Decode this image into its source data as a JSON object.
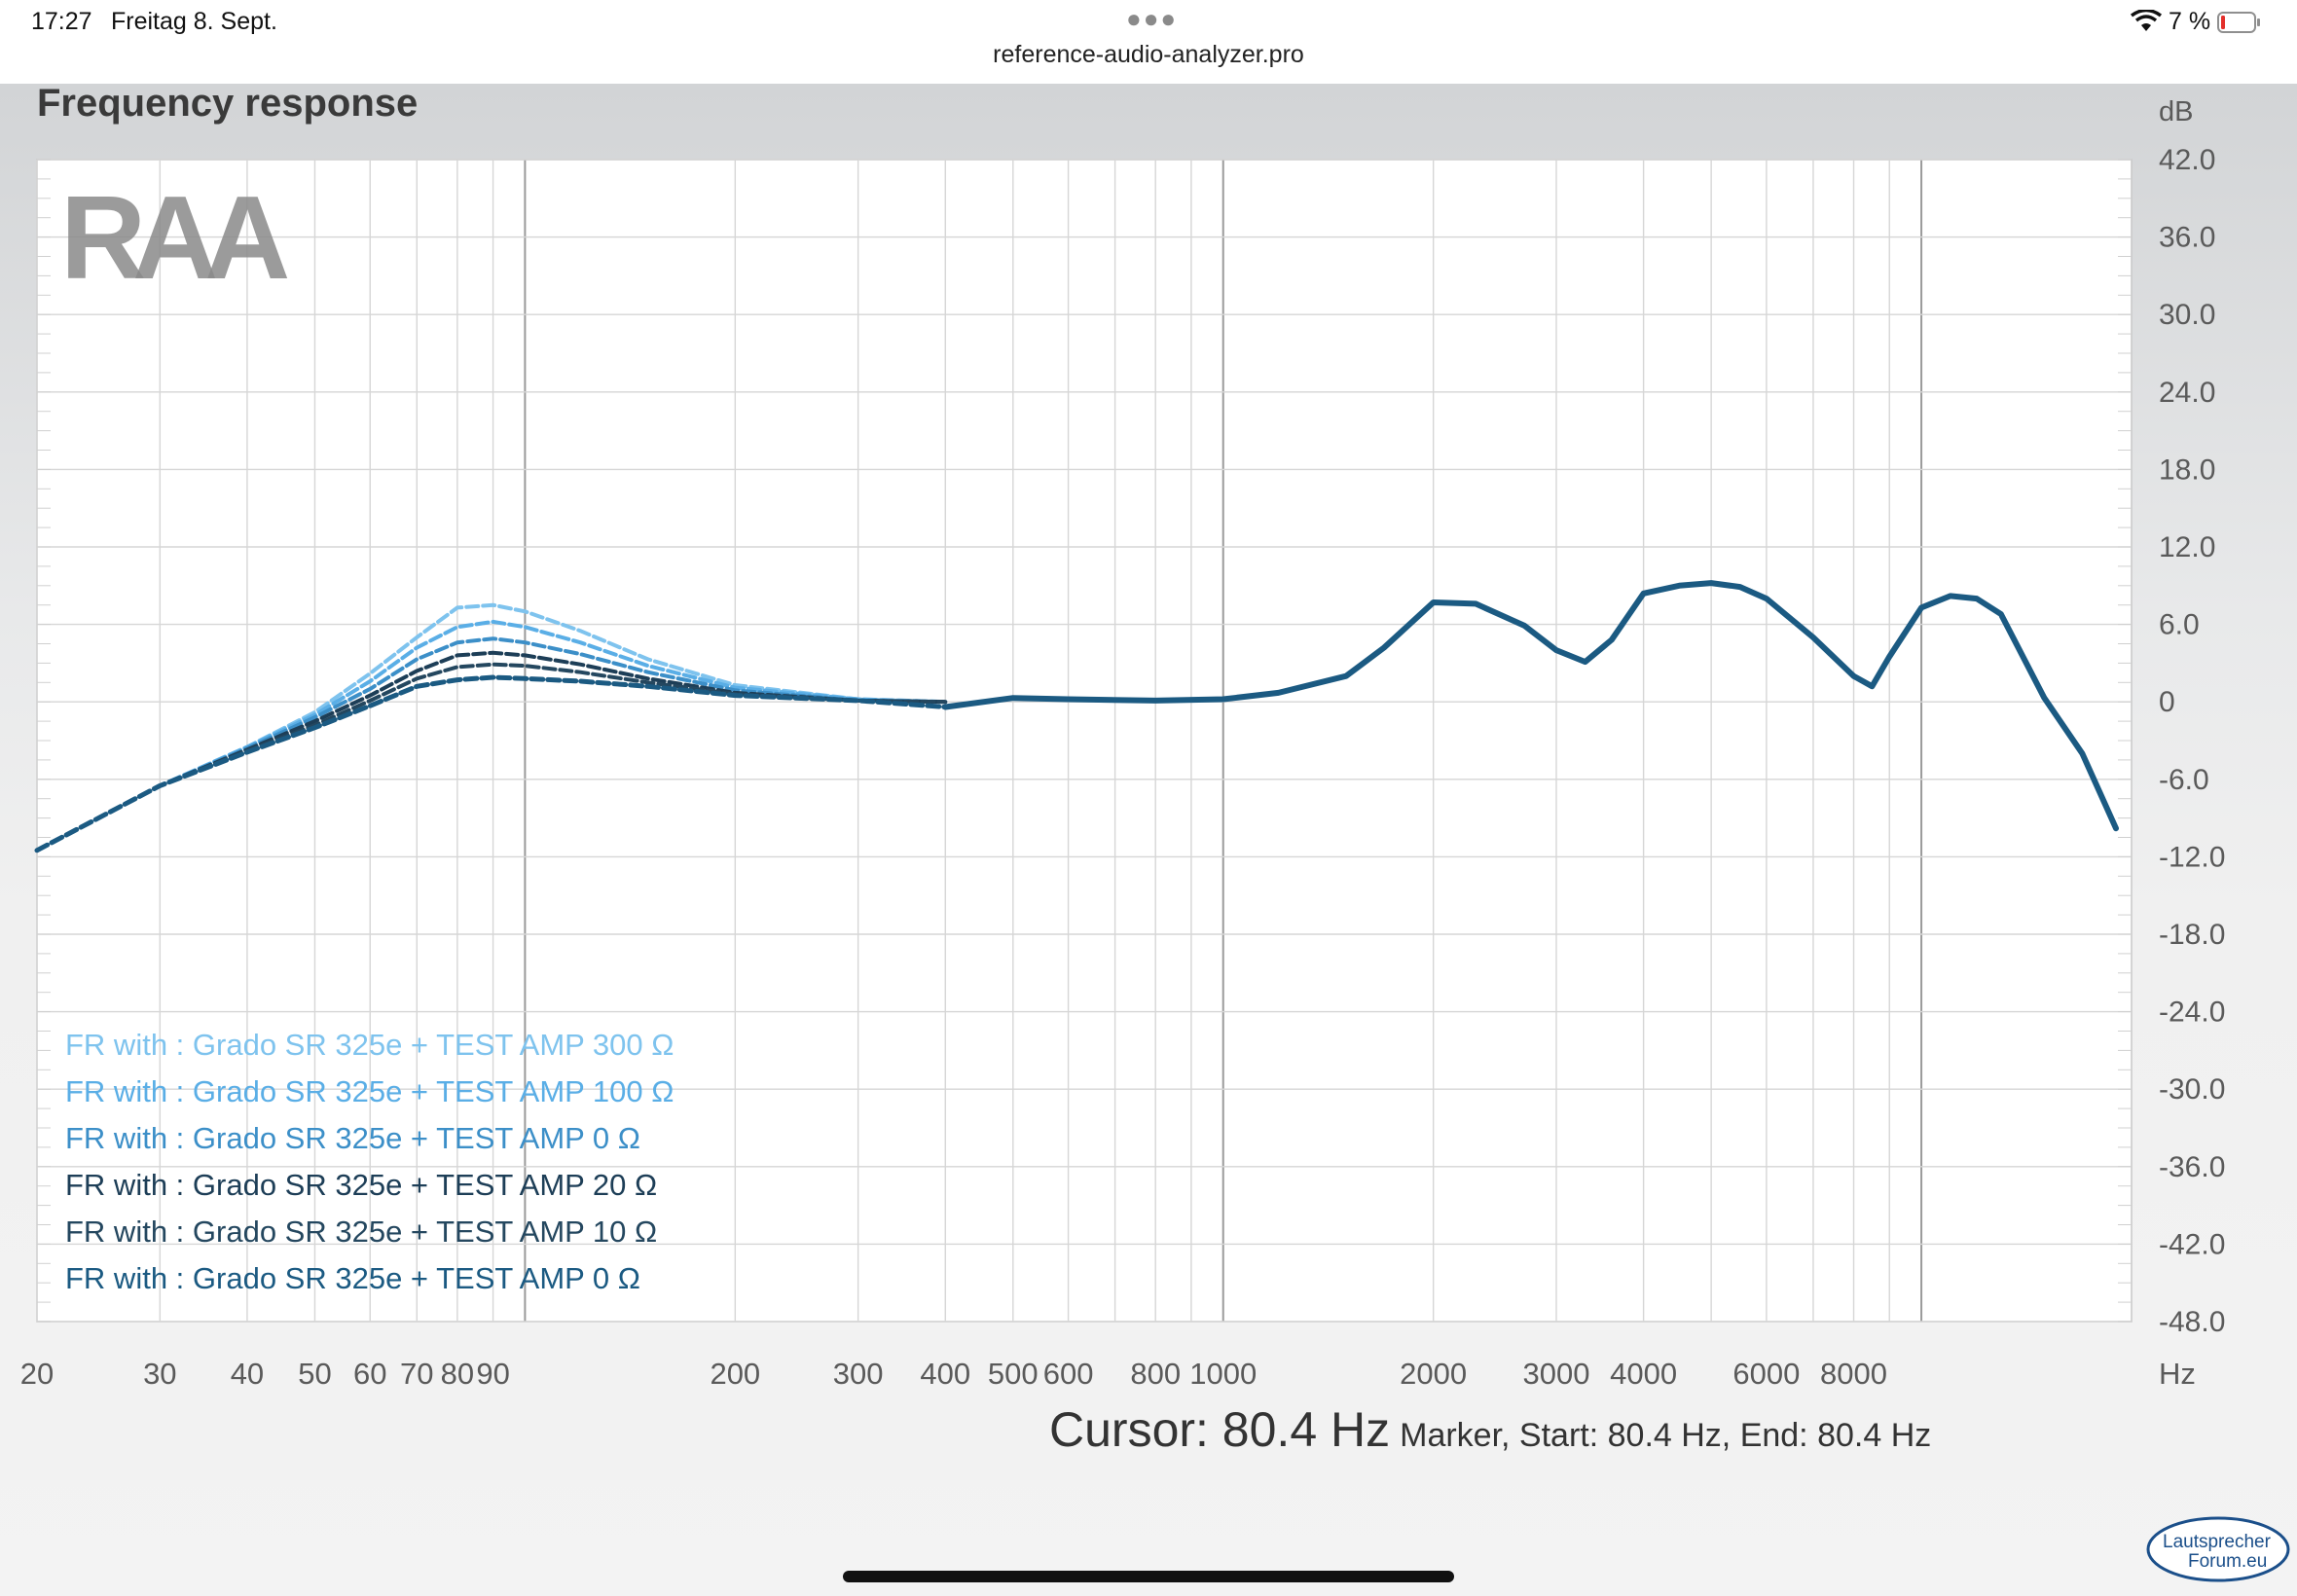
{
  "status_bar": {
    "time": "17:27",
    "date": "Freitag 8. Sept.",
    "url": "reference-audio-analyzer.pro",
    "battery": "7 %",
    "icons": [
      "more-dots-icon",
      "wifi-icon",
      "battery-low-icon"
    ]
  },
  "chart_title": "Frequency response",
  "cursor": {
    "main": "Cursor: 80.4 Hz",
    "marker": "Marker, Start: 80.4 Hz, End: 80.4 Hz"
  },
  "logos": {
    "ram": "RAA",
    "forum_line1": "Lautsprecher",
    "forum_line2": "Forum.eu"
  },
  "chart_data": {
    "type": "line",
    "title": "Frequency response",
    "xlabel": "Hz",
    "ylabel": "dB",
    "xscale": "log",
    "xlim": [
      20,
      20000
    ],
    "ylim": [
      -48,
      42
    ],
    "grid": true,
    "legend_position": "bottom-left",
    "x_ticks": [
      {
        "v": 20,
        "label": "20"
      },
      {
        "v": 30,
        "label": "30"
      },
      {
        "v": 40,
        "label": "40"
      },
      {
        "v": 50,
        "label": "50"
      },
      {
        "v": 60,
        "label": "60"
      },
      {
        "v": 70,
        "label": "70"
      },
      {
        "v": 80,
        "label": "80"
      },
      {
        "v": 90,
        "label": "90"
      },
      {
        "v": 200,
        "label": "200"
      },
      {
        "v": 300,
        "label": "300"
      },
      {
        "v": 400,
        "label": "400"
      },
      {
        "v": 500,
        "label": "500"
      },
      {
        "v": 600,
        "label": "600"
      },
      {
        "v": 800,
        "label": "800"
      },
      {
        "v": 1000,
        "label": "1000"
      },
      {
        "v": 2000,
        "label": "2000"
      },
      {
        "v": 3000,
        "label": "3000"
      },
      {
        "v": 4000,
        "label": "4000"
      },
      {
        "v": 6000,
        "label": "6000"
      },
      {
        "v": 8000,
        "label": "8000"
      }
    ],
    "y_ticks": [
      {
        "v": 42,
        "label": "42.0"
      },
      {
        "v": 36,
        "label": "36.0"
      },
      {
        "v": 30,
        "label": "30.0"
      },
      {
        "v": 24,
        "label": "24.0"
      },
      {
        "v": 18,
        "label": "18.0"
      },
      {
        "v": 12,
        "label": "12.0"
      },
      {
        "v": 6,
        "label": "6.0"
      },
      {
        "v": 0,
        "label": "0"
      },
      {
        "v": -6,
        "label": "-6.0"
      },
      {
        "v": -12,
        "label": "-12.0"
      },
      {
        "v": -18,
        "label": "-18.0"
      },
      {
        "v": -24,
        "label": "-24.0"
      },
      {
        "v": -30,
        "label": "-30.0"
      },
      {
        "v": -36,
        "label": "-36.0"
      },
      {
        "v": -42,
        "label": "-42.0"
      },
      {
        "v": -48,
        "label": "-48.0"
      }
    ],
    "series": [
      {
        "name": "FR with : Grado SR 325e + TEST AMP 300 Ω",
        "color": "#7ec3ee",
        "style": "dashed",
        "x": [
          20,
          30,
          40,
          50,
          60,
          70,
          80,
          90,
          100,
          120,
          150,
          200,
          300,
          400
        ],
        "y": [
          -11.5,
          -6.5,
          -3.5,
          -0.8,
          2.2,
          5.0,
          7.3,
          7.5,
          7.0,
          5.5,
          3.3,
          1.3,
          0.2,
          0
        ]
      },
      {
        "name": "FR with : Grado SR 325e + TEST AMP 100 Ω",
        "color": "#5aaee6",
        "style": "dashed",
        "x": [
          20,
          30,
          40,
          50,
          60,
          70,
          80,
          90,
          100,
          120,
          150,
          200,
          300,
          400
        ],
        "y": [
          -11.5,
          -6.5,
          -3.5,
          -1.0,
          1.6,
          4.2,
          5.8,
          6.2,
          5.8,
          4.6,
          2.8,
          1.1,
          0.2,
          0
        ]
      },
      {
        "name": "FR with : Grado SR 325e + TEST AMP 0 Ω",
        "color": "#3c8fc8",
        "style": "dashed",
        "x": [
          20,
          30,
          40,
          50,
          60,
          70,
          80,
          90,
          100,
          120,
          150,
          200,
          300,
          400
        ],
        "y": [
          -11.5,
          -6.5,
          -3.6,
          -1.2,
          1.0,
          3.3,
          4.6,
          4.9,
          4.6,
          3.7,
          2.3,
          0.9,
          0.1,
          0
        ]
      },
      {
        "name": "FR with : Grado SR 325e + TEST AMP 20 Ω",
        "color": "#1d3e57",
        "style": "dashed",
        "x": [
          20,
          30,
          40,
          50,
          60,
          70,
          80,
          90,
          100,
          120,
          150,
          200,
          300,
          400
        ],
        "y": [
          -11.5,
          -6.5,
          -3.7,
          -1.5,
          0.5,
          2.4,
          3.6,
          3.8,
          3.6,
          2.9,
          1.8,
          0.7,
          0.1,
          0
        ]
      },
      {
        "name": "FR with : Grado SR 325e + TEST AMP 10 Ω",
        "color": "#24475f",
        "style": "dashed",
        "x": [
          20,
          30,
          40,
          50,
          60,
          70,
          80,
          90,
          100,
          120,
          150,
          200,
          300,
          400
        ],
        "y": [
          -11.5,
          -6.5,
          -3.8,
          -1.8,
          0.1,
          1.8,
          2.7,
          2.9,
          2.8,
          2.3,
          1.5,
          0.6,
          0.1,
          0
        ]
      },
      {
        "name": "FR with : Grado SR 325e + TEST AMP 0 Ω",
        "color": "#1b5a82",
        "style": "dashed",
        "x": [
          20,
          30,
          40,
          50,
          60,
          70,
          80,
          90,
          100,
          120,
          150,
          200,
          300,
          400,
          500,
          600,
          800,
          1000,
          1200,
          1500,
          1700,
          2000,
          2300,
          2700,
          3000,
          3300,
          3600,
          4000,
          4500,
          5000,
          5500,
          6000,
          7000,
          8000,
          8500,
          9000,
          10000,
          11000,
          12000,
          13000,
          15000,
          17000,
          19000
        ],
        "y": [
          -11.5,
          -6.5,
          -3.9,
          -2.0,
          -0.3,
          1.2,
          1.7,
          1.9,
          1.8,
          1.6,
          1.2,
          0.5,
          0.1,
          -0.4,
          0.3,
          0.2,
          0.1,
          0.2,
          0.7,
          2.0,
          4.2,
          7.7,
          7.6,
          5.9,
          4.0,
          3.1,
          4.8,
          8.4,
          9.0,
          9.2,
          8.9,
          8.0,
          5.0,
          2.0,
          1.2,
          3.5,
          7.3,
          8.2,
          8.0,
          6.8,
          0.3,
          -4.0,
          -9.8
        ]
      }
    ]
  }
}
